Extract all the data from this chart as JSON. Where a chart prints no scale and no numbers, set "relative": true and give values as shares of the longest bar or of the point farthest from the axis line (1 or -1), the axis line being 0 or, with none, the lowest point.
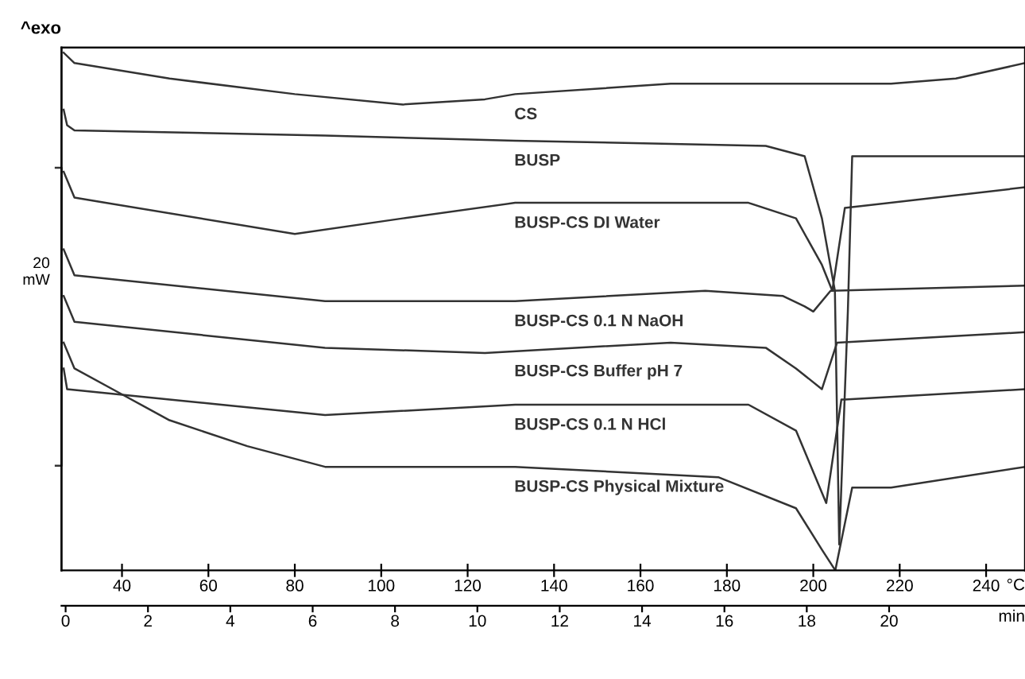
{
  "chart_data": {
    "type": "line",
    "relative": true,
    "xlabel": "°C",
    "x2label": "min",
    "xlim": [
      26,
      249
    ],
    "xticks": [
      40,
      60,
      80,
      100,
      120,
      140,
      160,
      180,
      200,
      220,
      240
    ],
    "x2lim": [
      -0.1,
      23.3
    ],
    "x2ticks": [
      0,
      2,
      4,
      6,
      8,
      10,
      12,
      14,
      16,
      18,
      20
    ],
    "grid": false,
    "legend": false,
    "marker": "none",
    "line_style": "solid",
    "annotations": [
      "^exo",
      "20\nmW"
    ],
    "series": [
      {
        "name": "CS",
        "color": "#333333",
        "x": [
          26.5,
          29,
          51,
          80,
          105,
          124,
          131,
          167,
          185,
          200,
          218,
          233,
          249
        ],
        "values": [
          1.0,
          0.98,
          0.95,
          0.92,
          0.9,
          0.91,
          0.92,
          0.94,
          0.94,
          0.94,
          0.94,
          0.95,
          0.98
        ]
      },
      {
        "name": "BUSP",
        "color": "#333333",
        "x": [
          26.5,
          27.3,
          29,
          87,
          131,
          189,
          198,
          202,
          205,
          206,
          208,
          209,
          249
        ],
        "values": [
          0.89,
          0.86,
          0.85,
          0.84,
          0.83,
          0.82,
          0.8,
          0.68,
          0.54,
          0.05,
          0.5,
          0.8,
          0.8
        ]
      },
      {
        "name": "BUSP-CS DI Water",
        "color": "#333333",
        "x": [
          26.5,
          29,
          80,
          105,
          131,
          185,
          196,
          202,
          204.4,
          207.3,
          249
        ],
        "values": [
          0.77,
          0.72,
          0.65,
          0.68,
          0.71,
          0.71,
          0.68,
          0.59,
          0.54,
          0.7,
          0.74
        ]
      },
      {
        "name": "BUSP-CS 0.1 N NaOH",
        "color": "#333333",
        "x": [
          26.5,
          29,
          87,
          131,
          175,
          193,
          198,
          200,
          204,
          249
        ],
        "values": [
          0.62,
          0.57,
          0.52,
          0.52,
          0.54,
          0.53,
          0.51,
          0.5,
          0.54,
          0.55
        ]
      },
      {
        "name": "BUSP-CS Buffer pH 7",
        "color": "#333333",
        "x": [
          26.5,
          29,
          87,
          124,
          167,
          189,
          196,
          202,
          205.5,
          249
        ],
        "values": [
          0.53,
          0.48,
          0.43,
          0.42,
          0.44,
          0.43,
          0.39,
          0.35,
          0.44,
          0.46
        ]
      },
      {
        "name": "BUSP-CS 0.1 N HCl",
        "color": "#333333",
        "x": [
          26.5,
          27.3,
          51,
          87,
          131,
          185,
          196,
          203,
          206.5,
          207.3,
          249
        ],
        "values": [
          0.39,
          0.35,
          0.33,
          0.3,
          0.32,
          0.32,
          0.27,
          0.13,
          0.33,
          0.33,
          0.35
        ]
      },
      {
        "name": "BUSP-CS Physical Mixture",
        "color": "#333333",
        "x": [
          26.5,
          29,
          40,
          51,
          69,
          87,
          105,
          131,
          178,
          196,
          202,
          205.1,
          209,
          218,
          249
        ],
        "values": [
          0.44,
          0.39,
          0.34,
          0.29,
          0.24,
          0.2,
          0.2,
          0.2,
          0.18,
          0.12,
          0.04,
          0.0,
          0.16,
          0.16,
          0.2
        ]
      }
    ]
  }
}
